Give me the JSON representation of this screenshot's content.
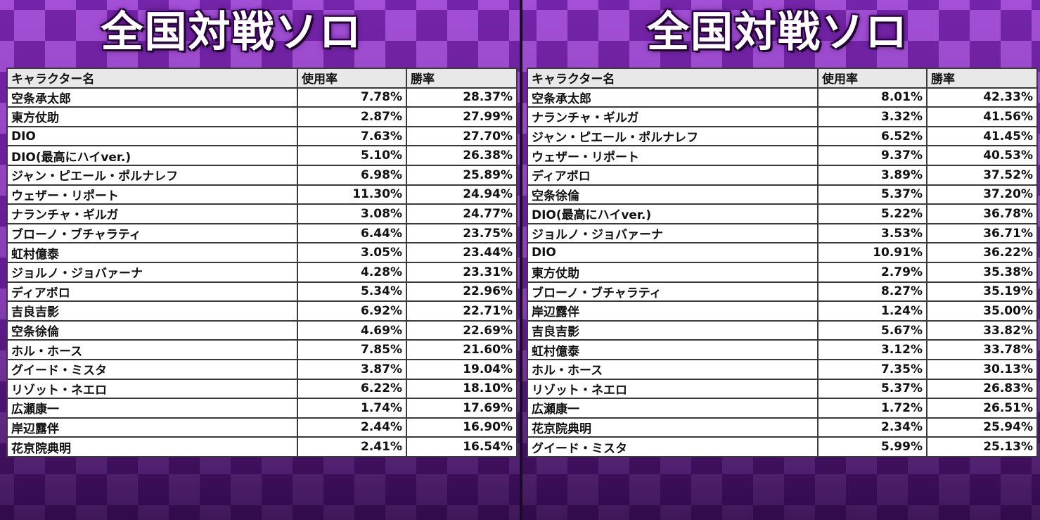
{
  "panels": [
    {
      "title": "全国対戦ソロ",
      "headers": [
        "キャラクター名",
        "使用率",
        "勝率"
      ],
      "rows": [
        [
          "空条承太郎",
          "7.78%",
          "28.37%"
        ],
        [
          "東方仗助",
          "2.87%",
          "27.99%"
        ],
        [
          "DIO",
          "7.63%",
          "27.70%"
        ],
        [
          "DIO(最高にハイver.)",
          "5.10%",
          "26.38%"
        ],
        [
          "ジャン・ピエール・ポルナレフ",
          "6.98%",
          "25.89%"
        ],
        [
          "ウェザー・リポート",
          "11.30%",
          "24.94%"
        ],
        [
          "ナランチャ・ギルガ",
          "3.08%",
          "24.77%"
        ],
        [
          "ブローノ・ブチャラティ",
          "6.44%",
          "23.75%"
        ],
        [
          "虹村億泰",
          "3.05%",
          "23.44%"
        ],
        [
          "ジョルノ・ジョバァーナ",
          "4.28%",
          "23.31%"
        ],
        [
          "ディアボロ",
          "5.34%",
          "22.96%"
        ],
        [
          "吉良吉影",
          "6.92%",
          "22.71%"
        ],
        [
          "空条徐倫",
          "4.69%",
          "22.69%"
        ],
        [
          "ホル・ホース",
          "7.85%",
          "21.60%"
        ],
        [
          "グイード・ミスタ",
          "3.87%",
          "19.04%"
        ],
        [
          "リゾット・ネエロ",
          "6.22%",
          "18.10%"
        ],
        [
          " 広瀬康一",
          "1.74%",
          "17.69%"
        ],
        [
          "岸辺露伴",
          "2.44%",
          "16.90%"
        ],
        [
          "花京院典明",
          "2.41%",
          "16.54%"
        ]
      ]
    },
    {
      "title": "全国対戦ソロ",
      "headers": [
        "キャラクター名",
        "使用率",
        "勝率"
      ],
      "rows": [
        [
          "空条承太郎",
          "8.01%",
          "42.33%"
        ],
        [
          "ナランチャ・ギルガ",
          "3.32%",
          "41.56%"
        ],
        [
          " ジャン・ピエール・ポルナレフ",
          "6.52%",
          "41.45%"
        ],
        [
          "ウェザー・リポート",
          "9.37%",
          "40.53%"
        ],
        [
          "ディアボロ",
          "3.89%",
          "37.52%"
        ],
        [
          "空条徐倫",
          "5.37%",
          "37.20%"
        ],
        [
          "DIO(最高にハイver.)",
          "5.22%",
          "36.78%"
        ],
        [
          "ジョルノ・ジョバァーナ",
          "3.53%",
          "36.71%"
        ],
        [
          "DIO",
          "10.91%",
          "36.22%"
        ],
        [
          "東方仗助",
          "2.79%",
          "35.38%"
        ],
        [
          "ブローノ・ブチャラティ",
          "8.27%",
          "35.19%"
        ],
        [
          "岸辺露伴",
          "1.24%",
          "35.00%"
        ],
        [
          "吉良吉影",
          "5.67%",
          "33.82%"
        ],
        [
          "虹村億泰",
          "3.12%",
          "33.78%"
        ],
        [
          "ホル・ホース",
          "7.35%",
          "30.13%"
        ],
        [
          "リゾット・ネエロ",
          "5.37%",
          "26.83%"
        ],
        [
          "広瀬康一",
          "1.72%",
          "26.51%"
        ],
        [
          "花京院典明",
          "2.34%",
          "25.94%"
        ],
        [
          "グイード・ミスタ",
          "5.99%",
          "25.13%"
        ]
      ]
    }
  ],
  "colors": {
    "background_purple": "#7b2bb0",
    "checker_light": "#a34fd6",
    "title_text": "#ffffff",
    "table_header_bg": "#e8e8e8",
    "table_border": "#3a3a3a"
  }
}
